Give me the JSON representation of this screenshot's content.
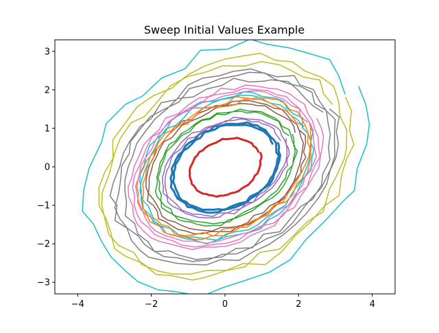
{
  "chart_data": {
    "type": "line",
    "title": "Sweep Initial Values Example",
    "xlabel": "",
    "ylabel": "",
    "xlim": [
      -4.62,
      4.62
    ],
    "ylim": [
      -3.3,
      3.3
    ],
    "xticks": [
      -4,
      -2,
      0,
      2,
      4
    ],
    "yticks": [
      -3,
      -2,
      -1,
      0,
      1,
      2,
      3
    ],
    "xtick_labels": [
      "−4",
      "−2",
      "0",
      "2",
      "4"
    ],
    "ytick_labels": [
      "−3",
      "−2",
      "−1",
      "0",
      "1",
      "2",
      "3"
    ],
    "grid": false,
    "legend": "none",
    "series": [
      {
        "color": "#d62728",
        "a": 1.0,
        "b": 0.7,
        "tilt_deg": 22,
        "noise": 0.03,
        "loops": 1,
        "steps": 60,
        "width": 3
      },
      {
        "color": "#1f77b4",
        "a": 1.5,
        "b": 1.05,
        "tilt_deg": 24,
        "noise": 0.04,
        "loops": 2,
        "steps": 60,
        "width": 3
      },
      {
        "color": "#9467bd",
        "a": 1.75,
        "b": 1.15,
        "tilt_deg": 24,
        "noise": 0.05,
        "loops": 2,
        "steps": 55,
        "width": 1.5
      },
      {
        "color": "#2ca02c",
        "a": 1.95,
        "b": 1.35,
        "tilt_deg": 25,
        "noise": 0.06,
        "loops": 2,
        "steps": 55,
        "width": 1.5
      },
      {
        "color": "#8c564b",
        "a": 2.2,
        "b": 1.55,
        "tilt_deg": 25,
        "noise": 0.06,
        "loops": 2,
        "steps": 55,
        "width": 1.5
      },
      {
        "color": "#17becf",
        "a": 2.4,
        "b": 1.75,
        "tilt_deg": 26,
        "noise": 0.08,
        "loops": 2,
        "steps": 50,
        "width": 1.5
      },
      {
        "color": "#ff7f0e",
        "a": 2.45,
        "b": 1.6,
        "tilt_deg": 26,
        "noise": 0.09,
        "loops": 2,
        "steps": 50,
        "width": 1.5
      },
      {
        "color": "#e377c2",
        "a": 2.65,
        "b": 1.85,
        "tilt_deg": 27,
        "noise": 0.07,
        "loops": 3,
        "steps": 50,
        "width": 1.5
      },
      {
        "color": "#7f7f7f",
        "a": 3.1,
        "b": 2.2,
        "tilt_deg": 28,
        "noise": 0.12,
        "loops": 3,
        "steps": 45,
        "width": 1.5
      },
      {
        "color": "#bcbd22",
        "a": 3.55,
        "b": 2.55,
        "tilt_deg": 29,
        "noise": 0.14,
        "loops": 2,
        "steps": 42,
        "width": 1.5
      },
      {
        "color": "#17becf",
        "a": 4.0,
        "b": 2.95,
        "tilt_deg": 30,
        "noise": 0.18,
        "loops": 1,
        "steps": 38,
        "width": 1.5
      }
    ]
  }
}
